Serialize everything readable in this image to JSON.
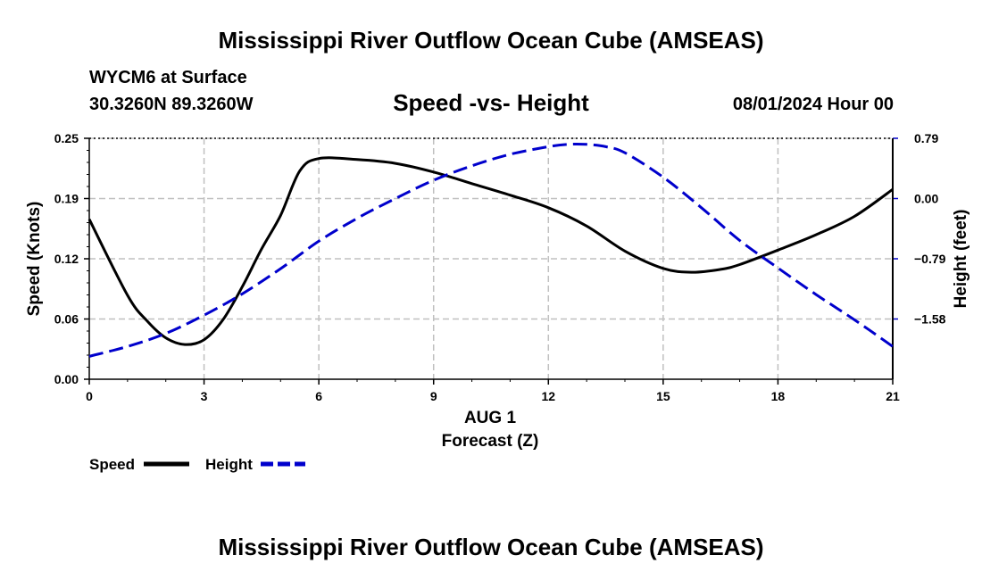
{
  "header": {
    "title": "Mississippi River Outflow Ocean Cube (AMSEAS)",
    "station": "WYCM6 at Surface",
    "coords": "30.3260N  89.3260W",
    "chart_title": "Speed -vs- Height",
    "datetime": "08/01/2024 Hour 00"
  },
  "footer": {
    "title": "Mississippi River Outflow Ocean Cube (AMSEAS)"
  },
  "chart_data": {
    "type": "line",
    "title": "Speed -vs- Height",
    "xlabel": "Forecast (Z)",
    "x_sublabel": "AUG 1",
    "ylabel_left": "Speed (Knots)",
    "ylabel_right": "Height (feet)",
    "xlim": [
      0,
      21
    ],
    "ylim_left": [
      0,
      0.25
    ],
    "ylim_right": [
      -2.37,
      0.79
    ],
    "x_ticks": [
      0,
      3,
      6,
      9,
      12,
      15,
      18,
      21
    ],
    "x_tick_labels": [
      "0",
      "3",
      "6",
      "9",
      "12",
      "15",
      "18",
      "21"
    ],
    "y_ticks_left": [
      0,
      0.0625,
      0.125,
      0.1875,
      0.25
    ],
    "y_tick_labels_left": [
      "0.00",
      "0.06",
      "0.12",
      "0.19",
      "0.25"
    ],
    "y_ticks_right": [
      0.79,
      0.0,
      -0.79,
      -1.58
    ],
    "y_tick_labels_right": [
      "0.79",
      "0.00",
      "−0.79",
      "−1.58"
    ],
    "grid": true,
    "colors": {
      "speed": "#000000",
      "height": "#0000cc",
      "grid": "#c0c0c0"
    },
    "series": [
      {
        "name": "Speed",
        "axis": "left",
        "style": "solid",
        "x": [
          0,
          1,
          1.5,
          2,
          2.5,
          3,
          3.5,
          4,
          4.5,
          5,
          5.5,
          6,
          7,
          8,
          9,
          10,
          11,
          12,
          13,
          14,
          15,
          15.75,
          16.5,
          17,
          18,
          19,
          20,
          21
        ],
        "values": [
          0.166,
          0.087,
          0.061,
          0.043,
          0.036,
          0.041,
          0.062,
          0.096,
          0.135,
          0.17,
          0.216,
          0.229,
          0.228,
          0.224,
          0.215,
          0.203,
          0.191,
          0.178,
          0.159,
          0.133,
          0.115,
          0.111,
          0.114,
          0.119,
          0.134,
          0.15,
          0.169,
          0.197
        ]
      },
      {
        "name": "Height",
        "axis": "right",
        "style": "dashed",
        "x": [
          0,
          1,
          2,
          3,
          4,
          5,
          6,
          7,
          8,
          9,
          10,
          11,
          12,
          12.5,
          13,
          13.5,
          14,
          15,
          16,
          17,
          18,
          19,
          20,
          21
        ],
        "values": [
          -2.07,
          -1.94,
          -1.77,
          -1.53,
          -1.25,
          -0.92,
          -0.56,
          -0.26,
          0.0,
          0.24,
          0.43,
          0.58,
          0.68,
          0.71,
          0.71,
          0.68,
          0.6,
          0.28,
          -0.12,
          -0.55,
          -0.91,
          -1.26,
          -1.59,
          -1.94
        ]
      }
    ],
    "legend": {
      "speed_label": "Speed",
      "height_label": "Height",
      "placement": "bottom-left"
    }
  }
}
